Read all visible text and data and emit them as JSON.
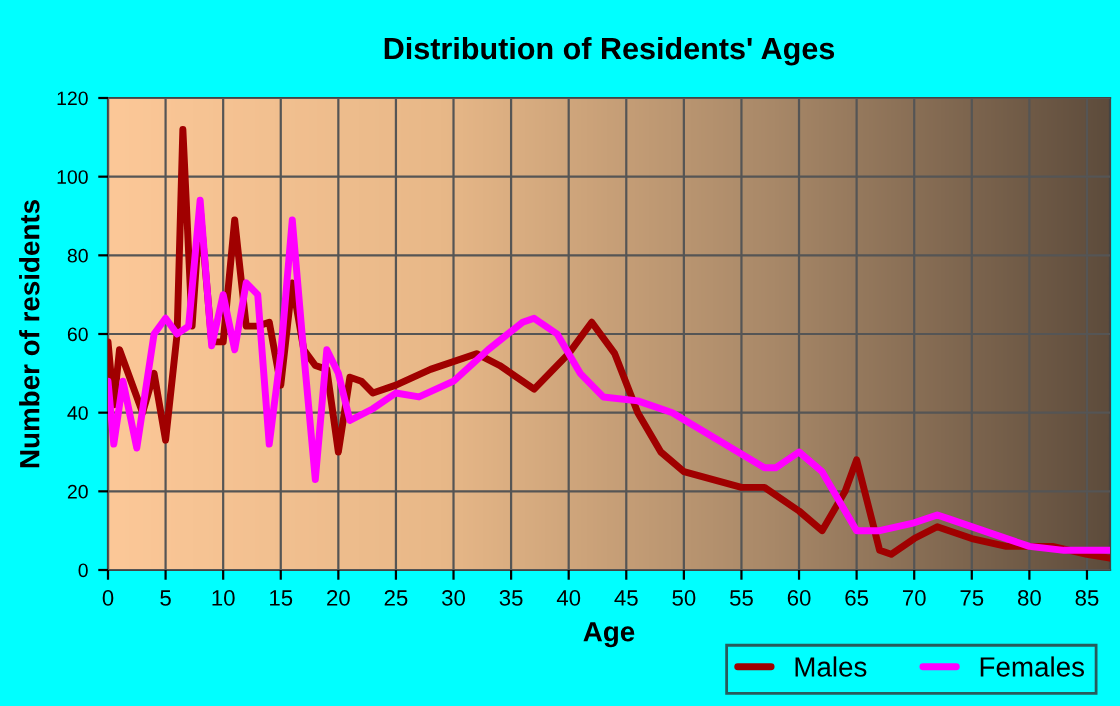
{
  "chart_data": {
    "type": "line",
    "title": "Distribution of Residents' Ages",
    "xlabel": "Age",
    "ylabel": "Number of residents",
    "xlim": [
      0,
      87
    ],
    "xticks": [
      0,
      5,
      10,
      15,
      20,
      25,
      30,
      35,
      40,
      45,
      50,
      55,
      60,
      65,
      70,
      75,
      80,
      85
    ],
    "ylim": [
      0,
      120
    ],
    "yticks": [
      0,
      20,
      40,
      60,
      80,
      100,
      120
    ],
    "grid": true,
    "legend": "bottom right",
    "line_style": "solid",
    "marker": "none",
    "series": [
      {
        "name": "Males",
        "color": "#a00000",
        "x": [
          0,
          0.5,
          1,
          3,
          4,
          5,
          6,
          6.5,
          7.3,
          8,
          9,
          10,
          11,
          12,
          13,
          14,
          15,
          16,
          17,
          18,
          19,
          20,
          21,
          22,
          23,
          25,
          28,
          32,
          34,
          37,
          40,
          42,
          44,
          46,
          48,
          50,
          55,
          57,
          60,
          62,
          64,
          65,
          67,
          68,
          70,
          72,
          75,
          78,
          80,
          82,
          85,
          87
        ],
        "values": [
          58,
          42,
          56,
          40,
          50,
          33,
          60,
          112,
          62,
          92,
          58,
          58,
          89,
          62,
          62,
          63,
          47,
          73,
          56,
          52,
          51,
          30,
          49,
          48,
          45,
          47,
          51,
          55,
          52,
          46,
          55,
          63,
          55,
          40,
          30,
          25,
          21,
          21,
          15,
          10,
          20,
          28,
          5,
          4,
          8,
          11,
          8,
          6,
          6,
          6,
          4,
          3
        ]
      },
      {
        "name": "Females",
        "color": "#ff00ff",
        "x": [
          0,
          0.5,
          1.3,
          2.5,
          4,
          5,
          6,
          7,
          8,
          9,
          10,
          11,
          12,
          13,
          14,
          15,
          16,
          17,
          18,
          19,
          20,
          21,
          23,
          25,
          27,
          30,
          33,
          36,
          37,
          39,
          41,
          43,
          46,
          49,
          53,
          57,
          58,
          60,
          62,
          65,
          67,
          70,
          72,
          73,
          77,
          80,
          83,
          85,
          87
        ],
        "values": [
          48,
          32,
          48,
          31,
          60,
          64,
          60,
          62,
          94,
          57,
          70,
          56,
          73,
          70,
          32,
          55,
          89,
          55,
          23,
          56,
          50,
          38,
          41,
          45,
          44,
          48,
          56,
          63,
          64,
          60,
          50,
          44,
          43,
          40,
          33,
          26,
          26,
          30,
          25,
          10,
          10,
          12,
          14,
          13,
          9,
          6,
          5,
          5,
          5
        ]
      }
    ]
  }
}
